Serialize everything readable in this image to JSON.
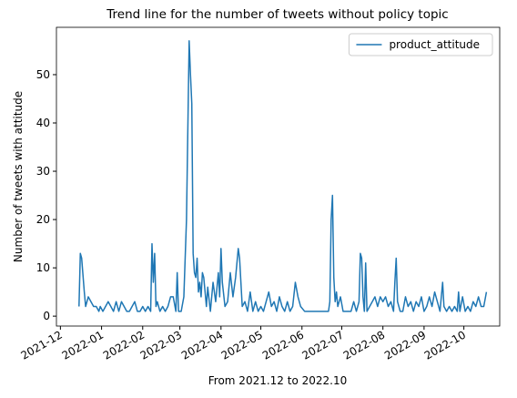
{
  "chart_data": {
    "type": "line",
    "title": "Trend line for the number of tweets without policy topic",
    "xlabel": "From 2021.12 to 2022.10",
    "ylabel": "Number of tweets with attitude",
    "legend": "upper right",
    "grid": false,
    "xlim": [
      "2021-11-28",
      "2022-10-28"
    ],
    "ylim": [
      -2.05,
      59.8
    ],
    "yticks": [
      0,
      10,
      20,
      30,
      40,
      50
    ],
    "xticks": [
      {
        "value": "2021-12-01",
        "label": "2021-12"
      },
      {
        "value": "2022-01-01",
        "label": "2022-01"
      },
      {
        "value": "2022-02-01",
        "label": "2022-02"
      },
      {
        "value": "2022-03-01",
        "label": "2022-03"
      },
      {
        "value": "2022-04-01",
        "label": "2022-04"
      },
      {
        "value": "2022-05-01",
        "label": "2022-05"
      },
      {
        "value": "2022-06-01",
        "label": "2022-06"
      },
      {
        "value": "2022-07-01",
        "label": "2022-07"
      },
      {
        "value": "2022-08-01",
        "label": "2022-08"
      },
      {
        "value": "2022-09-01",
        "label": "2022-09"
      },
      {
        "value": "2022-10-01",
        "label": "2022-10"
      }
    ],
    "x": [
      "2021-12-15",
      "2021-12-16",
      "2021-12-17",
      "2021-12-19",
      "2021-12-20",
      "2021-12-22",
      "2021-12-24",
      "2021-12-26",
      "2021-12-28",
      "2021-12-30",
      "2021-12-31",
      "2022-01-02",
      "2022-01-04",
      "2022-01-06",
      "2022-01-08",
      "2022-01-10",
      "2022-01-12",
      "2022-01-14",
      "2022-01-16",
      "2022-01-18",
      "2022-01-20",
      "2022-01-22",
      "2022-01-24",
      "2022-01-26",
      "2022-01-28",
      "2022-01-30",
      "2022-02-01",
      "2022-02-03",
      "2022-02-05",
      "2022-02-07",
      "2022-02-08",
      "2022-02-09",
      "2022-02-10",
      "2022-02-11",
      "2022-02-12",
      "2022-02-14",
      "2022-02-16",
      "2022-02-18",
      "2022-02-20",
      "2022-02-22",
      "2022-02-24",
      "2022-02-26",
      "2022-02-27",
      "2022-02-28",
      "2022-03-02",
      "2022-03-04",
      "2022-03-06",
      "2022-03-08",
      "2022-03-09",
      "2022-03-10",
      "2022-03-11",
      "2022-03-12",
      "2022-03-13",
      "2022-03-14",
      "2022-03-15",
      "2022-03-16",
      "2022-03-17",
      "2022-03-18",
      "2022-03-19",
      "2022-03-20",
      "2022-03-21",
      "2022-03-22",
      "2022-03-24",
      "2022-03-26",
      "2022-03-28",
      "2022-03-30",
      "2022-03-31",
      "2022-04-01",
      "2022-04-02",
      "2022-04-04",
      "2022-04-06",
      "2022-04-08",
      "2022-04-10",
      "2022-04-12",
      "2022-04-14",
      "2022-04-15",
      "2022-04-16",
      "2022-04-17",
      "2022-04-19",
      "2022-04-21",
      "2022-04-23",
      "2022-04-25",
      "2022-04-27",
      "2022-04-29",
      "2022-05-01",
      "2022-05-03",
      "2022-05-05",
      "2022-05-07",
      "2022-05-09",
      "2022-05-11",
      "2022-05-13",
      "2022-05-15",
      "2022-05-17",
      "2022-05-19",
      "2022-05-21",
      "2022-05-23",
      "2022-05-25",
      "2022-05-27",
      "2022-05-29",
      "2022-05-31",
      "2022-06-03",
      "2022-06-06",
      "2022-06-09",
      "2022-06-12",
      "2022-06-15",
      "2022-06-18",
      "2022-06-21",
      "2022-06-22",
      "2022-06-23",
      "2022-06-24",
      "2022-06-25",
      "2022-06-26",
      "2022-06-27",
      "2022-06-28",
      "2022-06-30",
      "2022-07-02",
      "2022-07-04",
      "2022-07-06",
      "2022-07-08",
      "2022-07-10",
      "2022-07-12",
      "2022-07-14",
      "2022-07-15",
      "2022-07-16",
      "2022-07-17",
      "2022-07-18",
      "2022-07-19",
      "2022-07-20",
      "2022-07-22",
      "2022-07-24",
      "2022-07-26",
      "2022-07-28",
      "2022-07-30",
      "2022-08-01",
      "2022-08-03",
      "2022-08-05",
      "2022-08-07",
      "2022-08-09",
      "2022-08-10",
      "2022-08-11",
      "2022-08-12",
      "2022-08-14",
      "2022-08-16",
      "2022-08-18",
      "2022-08-20",
      "2022-08-22",
      "2022-08-24",
      "2022-08-26",
      "2022-08-28",
      "2022-08-30",
      "2022-09-01",
      "2022-09-03",
      "2022-09-05",
      "2022-09-07",
      "2022-09-09",
      "2022-09-11",
      "2022-09-13",
      "2022-09-15",
      "2022-09-16",
      "2022-09-18",
      "2022-09-20",
      "2022-09-22",
      "2022-09-24",
      "2022-09-26",
      "2022-09-27",
      "2022-09-28",
      "2022-09-30",
      "2022-10-02",
      "2022-10-04",
      "2022-10-06",
      "2022-10-08",
      "2022-10-10",
      "2022-10-12",
      "2022-10-14",
      "2022-10-16",
      "2022-10-18"
    ],
    "series": [
      {
        "name": "product_attitude",
        "color": "#1f77b4",
        "values": [
          2,
          13,
          12,
          5,
          2,
          4,
          3,
          2,
          2,
          1,
          2,
          1,
          2,
          3,
          2,
          1,
          3,
          1,
          3,
          2,
          1,
          1,
          2,
          3,
          1,
          1,
          2,
          1,
          2,
          1,
          15,
          7,
          13,
          2,
          3,
          1,
          2,
          1,
          2,
          4,
          4,
          1,
          9,
          1,
          1,
          4,
          20,
          57,
          50,
          44,
          13,
          9,
          8,
          12,
          5,
          7,
          4,
          9,
          8,
          5,
          2,
          6,
          1,
          7,
          3,
          9,
          4,
          14,
          7,
          2,
          3,
          9,
          4,
          8,
          14,
          12,
          7,
          2,
          3,
          1,
          5,
          1,
          3,
          1,
          2,
          1,
          3,
          5,
          2,
          3,
          1,
          4,
          2,
          1,
          3,
          1,
          2,
          7,
          4,
          2,
          1,
          1,
          1,
          1,
          1,
          1,
          1,
          3,
          20,
          25,
          8,
          3,
          5,
          2,
          4,
          1,
          1,
          1,
          1,
          3,
          1,
          3,
          13,
          12,
          4,
          1,
          11,
          1,
          2,
          3,
          4,
          2,
          4,
          3,
          4,
          2,
          3,
          1,
          7,
          12,
          3,
          1,
          1,
          4,
          2,
          3,
          1,
          3,
          2,
          4,
          1,
          2,
          4,
          2,
          5,
          3,
          1,
          7,
          2,
          1,
          2,
          1,
          2,
          1,
          5,
          1,
          4,
          1,
          2,
          1,
          3,
          2,
          4,
          2,
          2,
          5
        ]
      }
    ]
  }
}
